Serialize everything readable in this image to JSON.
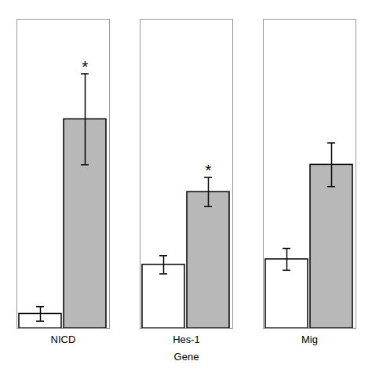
{
  "chart_data": {
    "type": "bar",
    "categories": [
      "NICD",
      "Hes-1",
      "Mig"
    ],
    "xlabel": "Gene",
    "series": [
      {
        "color": "#ffffff",
        "values": [
          0.08,
          0.35,
          0.38
        ],
        "errors": [
          0.04,
          0.05,
          0.06
        ]
      },
      {
        "color": "#b8b8b8",
        "values": [
          1.15,
          0.75,
          0.9
        ],
        "errors": [
          0.25,
          0.08,
          0.12
        ],
        "annotations": [
          "*",
          "*",
          null
        ]
      }
    ],
    "ylim": [
      0,
      1.7
    ],
    "tick_labels": "x"
  }
}
